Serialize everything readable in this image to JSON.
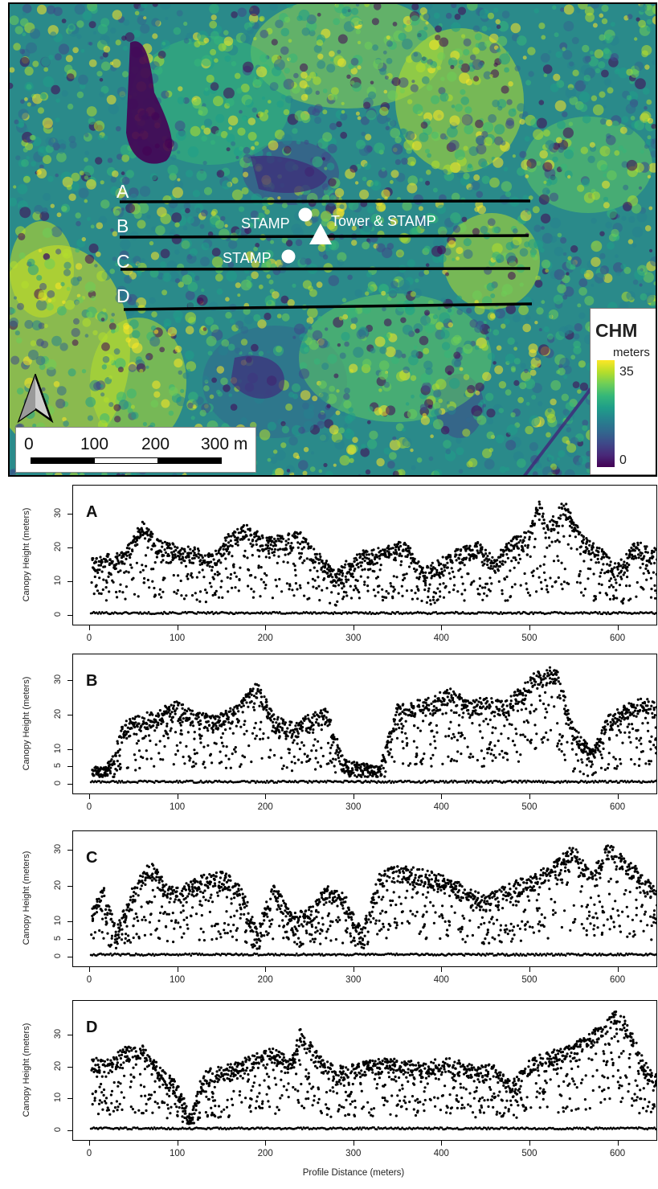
{
  "map": {
    "transects": [
      "A",
      "B",
      "C",
      "D"
    ],
    "site_labels": [
      "STAMP",
      "Tower & STAMP",
      "STAMP"
    ],
    "scale_labels": [
      "0",
      "100",
      "200",
      "300 m"
    ],
    "legend": {
      "title": "CHM",
      "units": "meters",
      "max": "35",
      "min": "0"
    },
    "icons": [
      "north-arrow-icon",
      "stamp-circle-icon",
      "tower-triangle-icon"
    ]
  },
  "chart_data": [
    {
      "type": "scatter",
      "panel": "A",
      "xlabel": "Profile Distance (meters)",
      "ylabel": "Canopy Height (meters)",
      "xlim": [
        0,
        645
      ],
      "ylim": [
        0,
        36
      ],
      "xticks": [
        0,
        100,
        200,
        300,
        400,
        500,
        600
      ],
      "yticks": [
        0,
        10,
        20,
        30
      ],
      "canopy_top_profile": {
        "x": [
          5,
          20,
          40,
          60,
          80,
          100,
          120,
          140,
          160,
          180,
          200,
          220,
          240,
          260,
          280,
          300,
          320,
          340,
          360,
          380,
          400,
          420,
          440,
          460,
          480,
          500,
          510,
          520,
          540,
          560,
          580,
          600,
          620,
          640
        ],
        "y": [
          17,
          18,
          19,
          28,
          22,
          21,
          20,
          18,
          25,
          27,
          23,
          24,
          25,
          19,
          13,
          18,
          20,
          21,
          22,
          14,
          17,
          20,
          22,
          17,
          23,
          25,
          35,
          27,
          34,
          24,
          20,
          15,
          22,
          20
        ]
      }
    },
    {
      "type": "scatter",
      "panel": "B",
      "xlabel": "Profile Distance (meters)",
      "ylabel": "Canopy Height (meters)",
      "xlim": [
        0,
        645
      ],
      "ylim": [
        0,
        35
      ],
      "xticks": [
        0,
        100,
        200,
        300,
        400,
        500,
        600
      ],
      "yticks": [
        0,
        5,
        10,
        20,
        30
      ],
      "canopy_top_profile": {
        "x": [
          5,
          20,
          40,
          60,
          80,
          100,
          120,
          140,
          170,
          190,
          210,
          230,
          250,
          270,
          290,
          310,
          330,
          350,
          370,
          390,
          410,
          430,
          450,
          470,
          490,
          510,
          530,
          550,
          570,
          590,
          610,
          630,
          640
        ],
        "y": [
          4,
          5,
          18,
          20,
          22,
          24,
          21,
          20,
          23,
          30,
          20,
          18,
          20,
          22,
          7,
          6,
          5,
          23,
          24,
          25,
          28,
          24,
          25,
          24,
          28,
          33,
          34,
          17,
          10,
          20,
          23,
          25,
          24
        ]
      }
    },
    {
      "type": "scatter",
      "panel": "C",
      "xlabel": "Profile Distance (meters)",
      "ylabel": "Canopy Height (meters)",
      "xlim": [
        0,
        645
      ],
      "ylim": [
        0,
        33
      ],
      "xticks": [
        0,
        100,
        200,
        300,
        400,
        500,
        600
      ],
      "yticks": [
        0,
        5,
        10,
        20,
        30
      ],
      "canopy_top_profile": {
        "x": [
          5,
          15,
          30,
          50,
          70,
          90,
          110,
          130,
          150,
          170,
          190,
          210,
          230,
          250,
          270,
          290,
          310,
          330,
          350,
          370,
          390,
          410,
          430,
          450,
          470,
          490,
          510,
          530,
          550,
          570,
          590,
          610,
          630,
          640
        ],
        "y": [
          15,
          22,
          8,
          20,
          27,
          20,
          21,
          23,
          24,
          22,
          8,
          21,
          12,
          14,
          20,
          18,
          8,
          24,
          26,
          25,
          24,
          22,
          20,
          17,
          20,
          22,
          24,
          27,
          32,
          24,
          32,
          28,
          23,
          20
        ]
      }
    },
    {
      "type": "scatter",
      "panel": "D",
      "xlabel": "Profile Distance (meters)",
      "ylabel": "Canopy Height (meters)",
      "xlim": [
        0,
        645
      ],
      "ylim": [
        0,
        38
      ],
      "xticks": [
        0,
        100,
        200,
        300,
        400,
        500,
        600
      ],
      "yticks": [
        0,
        10,
        20,
        30
      ],
      "canopy_top_profile": {
        "x": [
          5,
          20,
          40,
          60,
          80,
          100,
          115,
          130,
          150,
          170,
          190,
          210,
          230,
          240,
          260,
          280,
          300,
          320,
          340,
          360,
          380,
          400,
          420,
          440,
          460,
          480,
          500,
          520,
          540,
          560,
          580,
          595,
          610,
          630,
          640
        ],
        "y": [
          23,
          22,
          26,
          27,
          20,
          15,
          5,
          19,
          20,
          22,
          24,
          26,
          22,
          32,
          24,
          20,
          21,
          22,
          23,
          22,
          21,
          23,
          22,
          20,
          21,
          15,
          22,
          25,
          26,
          29,
          33,
          38,
          35,
          22,
          18
        ]
      }
    }
  ]
}
